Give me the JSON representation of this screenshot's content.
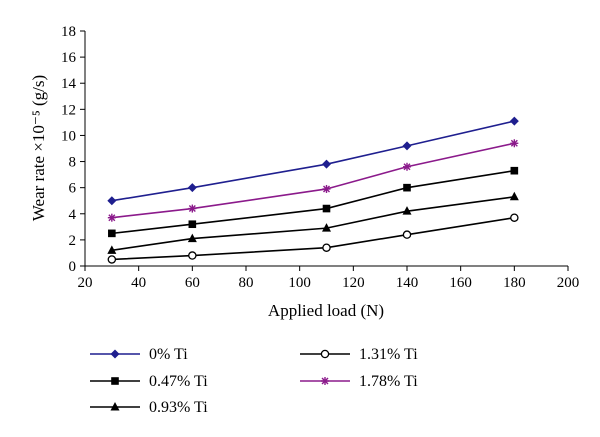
{
  "chart_data": {
    "type": "line",
    "title": "",
    "xlabel": "Applied load (N)",
    "ylabel": "Wear rate ×10⁻⁵ (g/s)",
    "xlim": [
      20,
      200
    ],
    "ylim": [
      0,
      18
    ],
    "xticks": [
      "20",
      "40",
      "60",
      "80",
      "100",
      "120",
      "140",
      "160",
      "180",
      "200"
    ],
    "yticks": [
      "0",
      "2",
      "4",
      "6",
      "8",
      "10",
      "12",
      "14",
      "16",
      "18"
    ],
    "grid": false,
    "legend_position": "bottom",
    "x": [
      30,
      60,
      110,
      140,
      180
    ],
    "series": [
      {
        "name": "0% Ti",
        "values": [
          5.0,
          6.0,
          7.8,
          9.2,
          11.1
        ],
        "color": "#1f1f8f",
        "marker": "diamond"
      },
      {
        "name": "0.47% Ti",
        "values": [
          2.5,
          3.2,
          4.4,
          6.0,
          7.3
        ],
        "color": "#000000",
        "marker": "square"
      },
      {
        "name": "0.93% Ti",
        "values": [
          1.2,
          2.1,
          2.9,
          4.2,
          5.3
        ],
        "color": "#000000",
        "marker": "triangle"
      },
      {
        "name": "1.31% Ti",
        "values": [
          0.5,
          0.8,
          1.4,
          2.4,
          3.7
        ],
        "color": "#000000",
        "marker": "circle-open"
      },
      {
        "name": "1.78% Ti",
        "values": [
          3.7,
          4.4,
          5.9,
          7.6,
          9.4
        ],
        "color": "#8b1a8b",
        "marker": "star"
      }
    ]
  }
}
